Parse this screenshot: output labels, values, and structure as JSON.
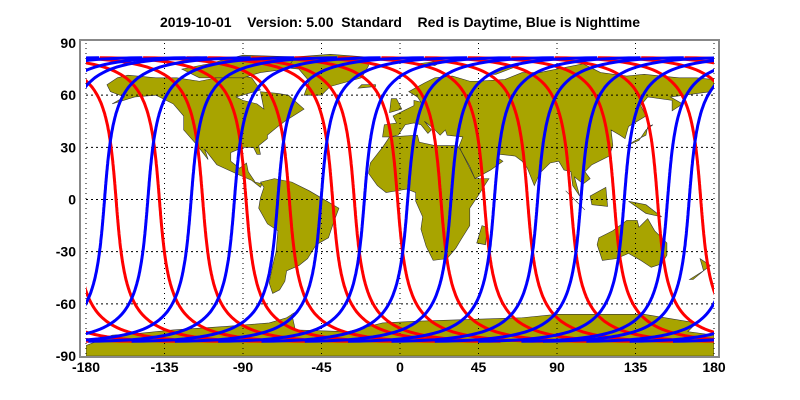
{
  "title": {
    "date": "2019-10-01",
    "version": "Version: 5.00",
    "mode": "Standard",
    "legend_text": "Red is Daytime, Blue is Nighttime"
  },
  "colors": {
    "day": "#ff0000",
    "night": "#0000ff",
    "land": "#a8a400",
    "grid": "#000000",
    "frame": "#888888"
  },
  "map": {
    "projection": "equirectangular",
    "lon_range": [
      -180,
      180
    ],
    "lat_range": [
      -90,
      90
    ],
    "x_ticks": [
      "-180",
      "-135",
      "-90",
      "-45",
      "0",
      "45",
      "90",
      "135",
      "180"
    ],
    "y_ticks": [
      "90",
      "60",
      "30",
      "0",
      "-30",
      "-60",
      "-90"
    ],
    "grid": "dotted",
    "ground_track": {
      "max_latitude": 81.5,
      "orbits_per_day": 14.5
    }
  }
}
